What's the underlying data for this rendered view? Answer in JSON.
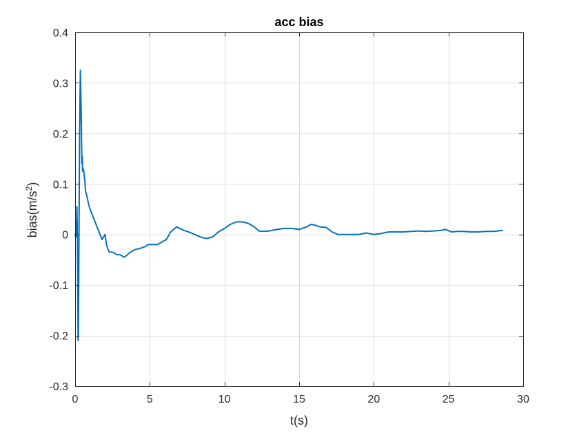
{
  "chart_data": {
    "type": "line",
    "title": "acc bias",
    "xlabel": "t(s)",
    "ylabel_main": "bias(m/s",
    "ylabel_sup": "2",
    "ylabel_close": ")",
    "xlim": [
      0,
      30
    ],
    "ylim": [
      -0.3,
      0.4
    ],
    "xticks": [
      0,
      5,
      10,
      15,
      20,
      25,
      30
    ],
    "yticks": [
      -0.3,
      -0.2,
      -0.1,
      0,
      0.1,
      0.2,
      0.3,
      0.4
    ],
    "xtick_labels": [
      "0",
      "5",
      "10",
      "15",
      "20",
      "25",
      "30"
    ],
    "ytick_labels": [
      "-0.3",
      "-0.2",
      "-0.1",
      "0",
      "0.1",
      "0.2",
      "0.3",
      "0.4"
    ],
    "grid": true,
    "series": [
      {
        "color": "#0072BD",
        "x": [
          0,
          0.05,
          0.1,
          0.12,
          0.15,
          0.17,
          0.2,
          0.22,
          0.25,
          0.3,
          0.35,
          0.4,
          0.45,
          0.48,
          0.5,
          0.55,
          0.6,
          0.65,
          0.7,
          0.8,
          0.9,
          1.0,
          1.2,
          1.4,
          1.6,
          1.8,
          2.0,
          2.05,
          2.1,
          2.2,
          2.3,
          2.5,
          2.8,
          3.0,
          3.3,
          3.5,
          3.7,
          4.0,
          4.3,
          4.6,
          4.9,
          5.2,
          5.5,
          5.8,
          6.1,
          6.4,
          6.6,
          6.8,
          7.0,
          7.3,
          7.6,
          8.0,
          8.4,
          8.8,
          9.2,
          9.6,
          10.0,
          10.4,
          10.8,
          11.2,
          11.6,
          12.0,
          12.3,
          12.6,
          13.0,
          13.5,
          14.0,
          14.5,
          15.0,
          15.5,
          15.8,
          16.1,
          16.4,
          16.8,
          17.2,
          17.6,
          18.0,
          18.5,
          19.0,
          19.5,
          20.0,
          20.5,
          21.0,
          21.5,
          22.0,
          22.5,
          23.0,
          23.5,
          24.0,
          24.5,
          24.8,
          25.2,
          25.6,
          26.0,
          26.5,
          27.0,
          27.5,
          28.0,
          28.3,
          28.6
        ],
        "y": [
          0.0,
          -0.005,
          0.03,
          0.055,
          0.0,
          -0.08,
          -0.21,
          -0.2,
          -0.05,
          0.2,
          0.325,
          0.25,
          0.14,
          0.155,
          0.125,
          0.13,
          0.12,
          0.105,
          0.085,
          0.075,
          0.06,
          0.05,
          0.035,
          0.02,
          0.005,
          -0.01,
          0.0,
          -0.01,
          -0.02,
          -0.03,
          -0.035,
          -0.035,
          -0.04,
          -0.04,
          -0.045,
          -0.04,
          -0.035,
          -0.03,
          -0.028,
          -0.025,
          -0.02,
          -0.02,
          -0.02,
          -0.015,
          -0.01,
          0.005,
          0.01,
          0.015,
          0.012,
          0.008,
          0.005,
          0.0,
          -0.005,
          -0.008,
          -0.005,
          0.005,
          0.012,
          0.02,
          0.025,
          0.025,
          0.022,
          0.015,
          0.007,
          0.006,
          0.007,
          0.01,
          0.012,
          0.012,
          0.01,
          0.015,
          0.02,
          0.018,
          0.015,
          0.014,
          0.005,
          0.0,
          0.0,
          0.0,
          0.0,
          0.003,
          0.0,
          0.002,
          0.005,
          0.005,
          0.005,
          0.006,
          0.007,
          0.006,
          0.007,
          0.008,
          0.01,
          0.005,
          0.006,
          0.006,
          0.005,
          0.005,
          0.006,
          0.006,
          0.007,
          0.008
        ]
      }
    ]
  }
}
